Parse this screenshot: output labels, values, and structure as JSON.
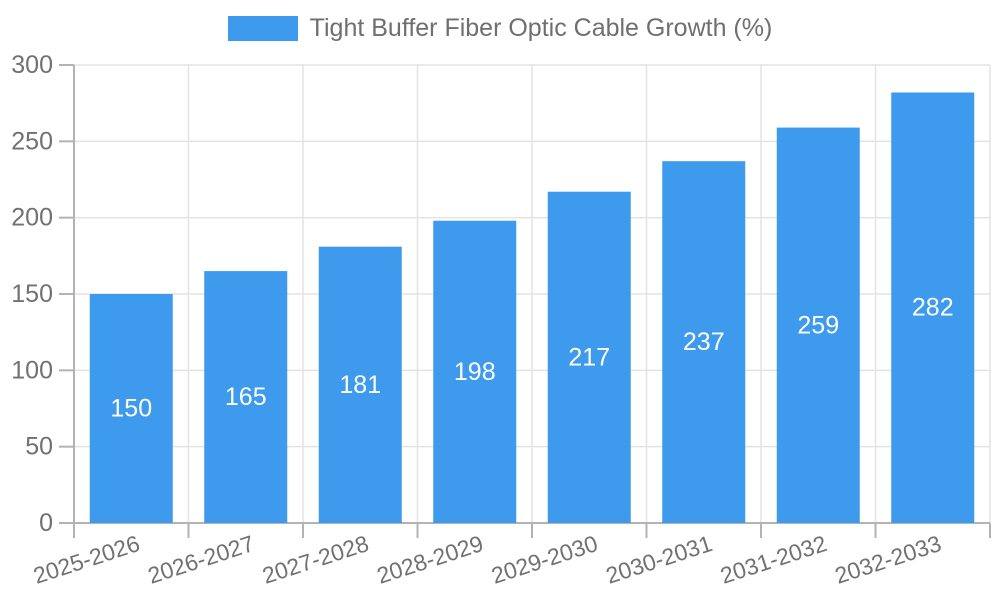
{
  "legend": {
    "label": "Tight Buffer Fiber Optic Cable Growth (%)"
  },
  "chart_data": {
    "type": "bar",
    "title": "Tight Buffer Fiber Optic Cable Growth (%)",
    "categories": [
      "2025-2026",
      "2026-2027",
      "2027-2028",
      "2028-2029",
      "2029-2030",
      "2030-2031",
      "2031-2032",
      "2032-2033"
    ],
    "series": [
      {
        "name": "Tight Buffer Fiber Optic Cable Growth (%)",
        "values": [
          150,
          165,
          181,
          198,
          217,
          237,
          259,
          282
        ]
      }
    ],
    "value_labels": [
      "150",
      "165",
      "181",
      "198",
      "217",
      "237",
      "259",
      "282"
    ],
    "ytick_labels": [
      "0",
      "50",
      "100",
      "150",
      "200",
      "250",
      "300"
    ],
    "xlabel": "",
    "ylabel": "",
    "ylim": [
      0,
      300
    ],
    "ytick_step": 50,
    "grid": true,
    "legend_position": "top",
    "x_label_rotation_deg": -18,
    "colors": {
      "bar": "#3d9aec",
      "value_label": "#ffffff",
      "tick_text": "#717171",
      "axis_line": "#b3b3b3",
      "grid_line": "#e3e3e3"
    }
  }
}
